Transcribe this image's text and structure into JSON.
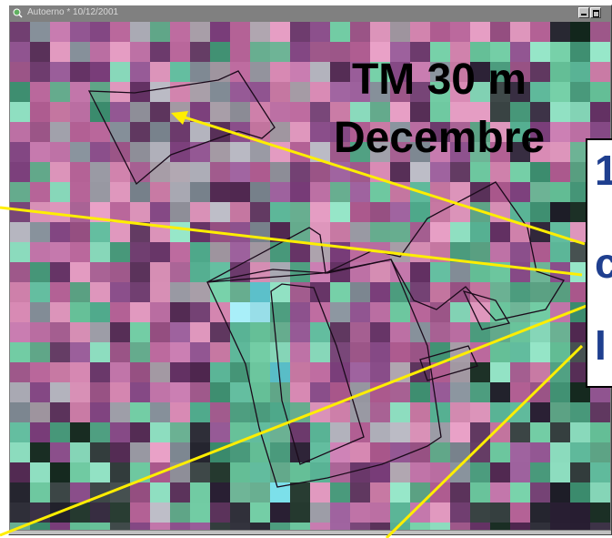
{
  "window": {
    "title": "Autoerno * 10/12/2001",
    "icon": "magnifier-icon",
    "controls": [
      "minimize-button",
      "maximize-button"
    ]
  },
  "image_label": {
    "line1": "TM 30 m",
    "line2": "Decembre"
  },
  "side_box": {
    "lines": [
      "1",
      "c",
      "I"
    ]
  },
  "colors": {
    "annotation_line": "#ffee00",
    "field_outline": "#000000",
    "side_box_text": "#1f3f8f",
    "titlebar": "#808080"
  }
}
